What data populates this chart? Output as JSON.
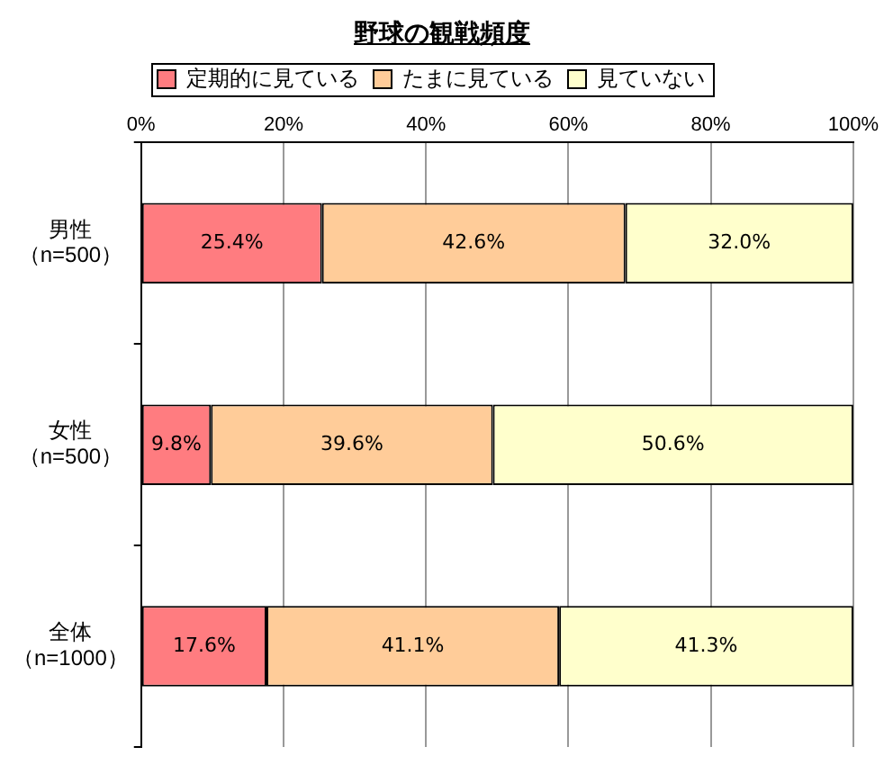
{
  "chart_data": {
    "type": "bar",
    "orientation": "horizontal",
    "stacked": true,
    "title": "野球の観戦頻度",
    "categories": [
      "男性（n=500）",
      "女性（n=500）",
      "全体（n=1000）"
    ],
    "series": [
      {
        "name": "定期的に見ている",
        "color": "#ff7c80",
        "values": [
          25.4,
          9.8,
          17.6
        ],
        "value_labels": [
          "25.4%",
          "9.8%",
          "17.6%"
        ]
      },
      {
        "name": "たまに見ている",
        "color": "#ffcc99",
        "values": [
          42.6,
          39.6,
          41.1
        ],
        "value_labels": [
          "42.6%",
          "39.6%",
          "41.1%"
        ]
      },
      {
        "name": "見ていない",
        "color": "#ffffcc",
        "values": [
          32.0,
          50.6,
          41.3
        ],
        "value_labels": [
          "32.0%",
          "50.6%",
          "41.3%"
        ]
      }
    ],
    "xlim": [
      0,
      100
    ],
    "xticks": [
      {
        "value": 0,
        "label": "0%"
      },
      {
        "value": 20,
        "label": "20%"
      },
      {
        "value": 40,
        "label": "40%"
      },
      {
        "value": 60,
        "label": "60%"
      },
      {
        "value": 80,
        "label": "80%"
      },
      {
        "value": 100,
        "label": "100%"
      }
    ],
    "grid": "x",
    "legend": "top"
  }
}
